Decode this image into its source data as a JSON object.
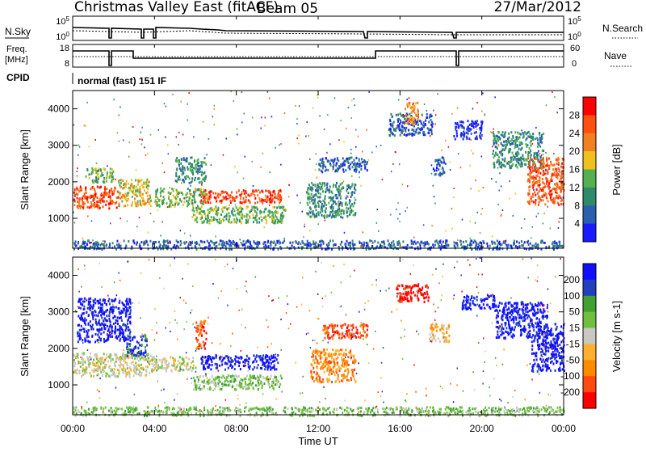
{
  "header": {
    "title": "Christmas Valley East (fitACF)",
    "beam": "Beam 05",
    "date": "27/Mar/2012"
  },
  "noise_panel": {
    "left_label": "N.Sky",
    "left_ticks": [
      "10^5",
      "10^0"
    ],
    "right_label": "N.Search",
    "right_ticks": [
      "10^5",
      "10^0"
    ]
  },
  "freq_panel": {
    "left_label_line1": "Freq.",
    "left_label_line2": "[MHz]",
    "left_ticks": [
      "18",
      "8"
    ],
    "right_label": "Nave",
    "right_ticks": [
      "60",
      "0"
    ]
  },
  "cpid": {
    "label": "CPID",
    "program": "normal (fast) 151 IF"
  },
  "colors": {
    "power": [
      "#1a1aff",
      "#2a5fb0",
      "#2e8a6a",
      "#55b050",
      "#f0c020",
      "#f08020",
      "#ff5010",
      "#ff0000"
    ],
    "velocity": [
      "#ff0000",
      "#ff4a10",
      "#ff8a00",
      "#ffb030",
      "#c8c8c0",
      "#70c040",
      "#40a030",
      "#2040c0",
      "#1010ff"
    ]
  },
  "chart_data": [
    {
      "type": "heatmap",
      "title": "",
      "ylabel": "Slant Range [km]",
      "xlabel": "",
      "y_ticks": [
        "1000",
        "2000",
        "3000",
        "4000"
      ],
      "ylim": [
        180,
        4500
      ],
      "xlim_hours": [
        0,
        24
      ],
      "colorbar_label": "Power [dB]",
      "colorbar_ticks": [
        "4",
        "8",
        "12",
        "16",
        "20",
        "24",
        "28"
      ],
      "regions": [
        {
          "t": [
            0.0,
            2.2
          ],
          "r": [
            1300,
            1900
          ],
          "level": 6
        },
        {
          "t": [
            2.2,
            3.8
          ],
          "r": [
            1350,
            2100
          ],
          "level": 4
        },
        {
          "t": [
            0.6,
            2.0
          ],
          "r": [
            2000,
            2400
          ],
          "level": 3
        },
        {
          "t": [
            4.0,
            6.5
          ],
          "r": [
            1350,
            1850
          ],
          "level": 3
        },
        {
          "t": [
            5.0,
            6.5
          ],
          "r": [
            2000,
            2700
          ],
          "level": 2
        },
        {
          "t": [
            6.2,
            10.2
          ],
          "r": [
            1450,
            1800
          ],
          "level": 6
        },
        {
          "t": [
            5.8,
            10.4
          ],
          "r": [
            900,
            1350
          ],
          "level": 3
        },
        {
          "t": [
            11.4,
            13.8
          ],
          "r": [
            1050,
            2000
          ],
          "level": 2
        },
        {
          "t": [
            12.0,
            14.4
          ],
          "r": [
            2300,
            2700
          ],
          "level": 1
        },
        {
          "t": [
            15.4,
            17.6
          ],
          "r": [
            3300,
            3900
          ],
          "level": 1
        },
        {
          "t": [
            16.2,
            16.9
          ],
          "r": [
            3600,
            4200
          ],
          "level": 5
        },
        {
          "t": [
            17.6,
            18.2
          ],
          "r": [
            2200,
            2700
          ],
          "level": 1
        },
        {
          "t": [
            18.6,
            20.0
          ],
          "r": [
            3200,
            3700
          ],
          "level": 0
        },
        {
          "t": [
            20.5,
            23.0
          ],
          "r": [
            2400,
            3400
          ],
          "level": 2
        },
        {
          "t": [
            22.2,
            24.0
          ],
          "r": [
            1400,
            2700
          ],
          "level": 6
        },
        {
          "t": [
            0.0,
            24.0
          ],
          "r": [
            180,
            420
          ],
          "level": 1
        }
      ]
    },
    {
      "type": "heatmap",
      "title": "",
      "ylabel": "Slant Range [km]",
      "xlabel": "Time UT",
      "x_ticks": [
        "00:00",
        "04:00",
        "08:00",
        "12:00",
        "16:00",
        "20:00",
        "00:00"
      ],
      "y_ticks": [
        "1000",
        "2000",
        "3000",
        "4000"
      ],
      "ylim": [
        180,
        4500
      ],
      "xlim_hours": [
        0,
        24
      ],
      "colorbar_label": "Velocity [m s-1]",
      "colorbar_ticks": [
        "200",
        "100",
        "50",
        "15",
        "-15",
        "-50",
        "-100",
        "-200"
      ],
      "regions": [
        {
          "t": [
            0.0,
            3.8
          ],
          "r": [
            1250,
            1900
          ],
          "level": 4
        },
        {
          "t": [
            0.2,
            2.8
          ],
          "r": [
            2200,
            3400
          ],
          "level": 8
        },
        {
          "t": [
            2.6,
            3.6
          ],
          "r": [
            1800,
            2400
          ],
          "level": 7
        },
        {
          "t": [
            3.8,
            6.0
          ],
          "r": [
            1400,
            1800
          ],
          "level": 4
        },
        {
          "t": [
            6.0,
            6.5
          ],
          "r": [
            2000,
            2800
          ],
          "level": 1
        },
        {
          "t": [
            6.2,
            10.0
          ],
          "r": [
            1450,
            1850
          ],
          "level": 8
        },
        {
          "t": [
            5.8,
            10.2
          ],
          "r": [
            900,
            1300
          ],
          "level": 5
        },
        {
          "t": [
            11.6,
            13.8
          ],
          "r": [
            1100,
            2000
          ],
          "level": 2
        },
        {
          "t": [
            12.2,
            14.4
          ],
          "r": [
            2300,
            2700
          ],
          "level": 1
        },
        {
          "t": [
            15.8,
            17.4
          ],
          "r": [
            3300,
            3800
          ],
          "level": 0
        },
        {
          "t": [
            17.4,
            18.4
          ],
          "r": [
            2200,
            2700
          ],
          "level": 3
        },
        {
          "t": [
            19.0,
            20.6
          ],
          "r": [
            3100,
            3500
          ],
          "level": 8
        },
        {
          "t": [
            20.6,
            23.2
          ],
          "r": [
            2300,
            3300
          ],
          "level": 8
        },
        {
          "t": [
            22.4,
            24.0
          ],
          "r": [
            1400,
            2700
          ],
          "level": 8
        },
        {
          "t": [
            0.0,
            24.0
          ],
          "r": [
            180,
            420
          ],
          "level": 5
        }
      ]
    }
  ]
}
